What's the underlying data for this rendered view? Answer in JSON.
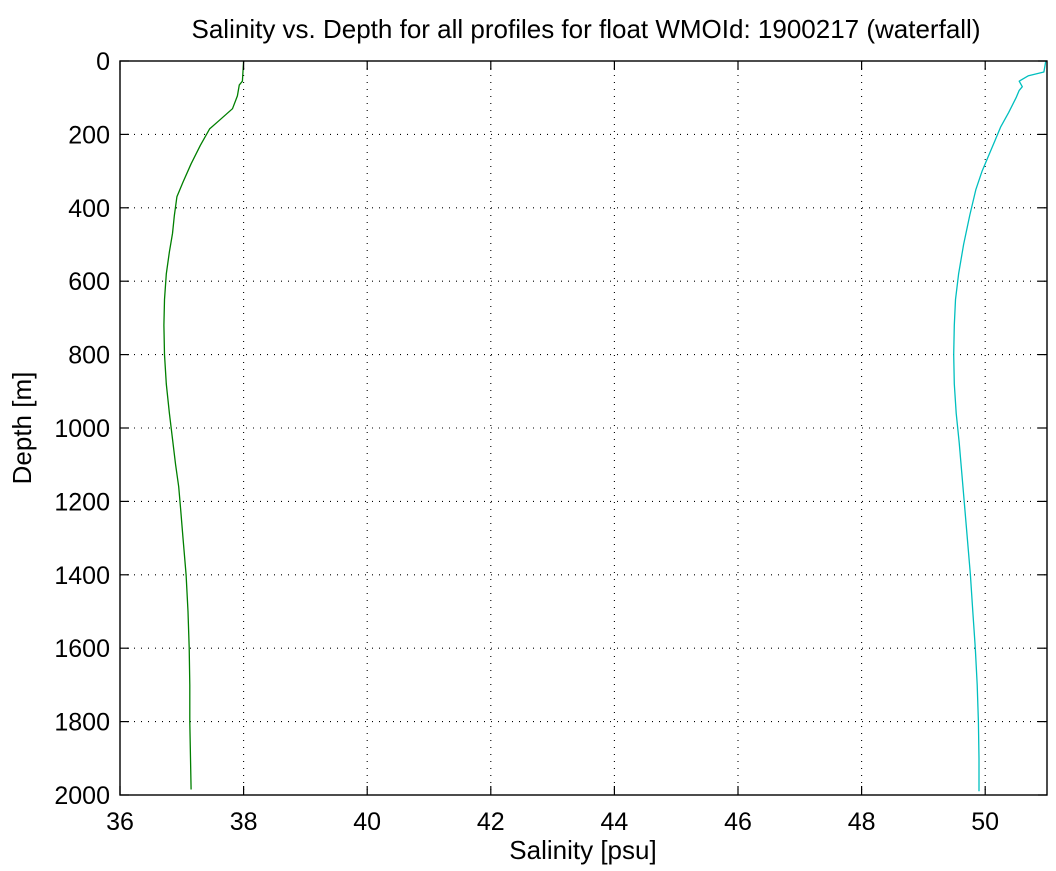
{
  "chart_data": {
    "type": "line",
    "title": "Salinity vs. Depth for all profiles for float WMOId: 1900217 (waterfall)",
    "xlabel": "Salinity [psu]",
    "ylabel": "Depth [m]",
    "xlim": [
      36,
      51
    ],
    "ylim": [
      0,
      2000
    ],
    "y_reversed": true,
    "grid": true,
    "x_ticks": [
      "36",
      "38",
      "40",
      "42",
      "44",
      "46",
      "48",
      "50"
    ],
    "x_tick_values": [
      36,
      38,
      40,
      42,
      44,
      46,
      48,
      50
    ],
    "y_ticks": [
      "0",
      "200",
      "400",
      "600",
      "800",
      "1000",
      "1200",
      "1400",
      "1600",
      "1800",
      "2000"
    ],
    "y_tick_values": [
      0,
      200,
      400,
      600,
      800,
      1000,
      1200,
      1400,
      1600,
      1800,
      2000
    ],
    "series": [
      {
        "color": "#007f00",
        "points": [
          [
            38.0,
            0
          ],
          [
            37.98,
            55
          ],
          [
            37.93,
            65
          ],
          [
            37.9,
            95
          ],
          [
            37.82,
            130
          ],
          [
            37.62,
            160
          ],
          [
            37.45,
            185
          ],
          [
            37.3,
            230
          ],
          [
            37.15,
            280
          ],
          [
            37.02,
            330
          ],
          [
            36.92,
            370
          ],
          [
            36.88,
            420
          ],
          [
            36.85,
            470
          ],
          [
            36.8,
            520
          ],
          [
            36.75,
            580
          ],
          [
            36.72,
            650
          ],
          [
            36.71,
            720
          ],
          [
            36.72,
            800
          ],
          [
            36.75,
            880
          ],
          [
            36.8,
            960
          ],
          [
            36.85,
            1030
          ],
          [
            36.9,
            1100
          ],
          [
            36.95,
            1160
          ],
          [
            36.98,
            1220
          ],
          [
            37.02,
            1300
          ],
          [
            37.07,
            1400
          ],
          [
            37.1,
            1500
          ],
          [
            37.12,
            1600
          ],
          [
            37.13,
            1700
          ],
          [
            37.13,
            1800
          ],
          [
            37.14,
            1900
          ],
          [
            37.15,
            1985
          ]
        ]
      },
      {
        "color": "#00bfbf",
        "points": [
          [
            50.98,
            0
          ],
          [
            50.95,
            30
          ],
          [
            50.7,
            40
          ],
          [
            50.6,
            50
          ],
          [
            50.55,
            55
          ],
          [
            50.6,
            70
          ],
          [
            50.55,
            80
          ],
          [
            50.5,
            100
          ],
          [
            50.38,
            140
          ],
          [
            50.25,
            180
          ],
          [
            50.15,
            220
          ],
          [
            50.05,
            260
          ],
          [
            49.95,
            300
          ],
          [
            49.85,
            350
          ],
          [
            49.75,
            420
          ],
          [
            49.65,
            500
          ],
          [
            49.57,
            580
          ],
          [
            49.52,
            650
          ],
          [
            49.5,
            720
          ],
          [
            49.49,
            800
          ],
          [
            49.5,
            880
          ],
          [
            49.53,
            960
          ],
          [
            49.58,
            1040
          ],
          [
            49.62,
            1120
          ],
          [
            49.66,
            1200
          ],
          [
            49.71,
            1300
          ],
          [
            49.76,
            1400
          ],
          [
            49.8,
            1500
          ],
          [
            49.84,
            1600
          ],
          [
            49.87,
            1700
          ],
          [
            49.89,
            1800
          ],
          [
            49.9,
            1900
          ],
          [
            49.9,
            1990
          ]
        ]
      }
    ]
  }
}
